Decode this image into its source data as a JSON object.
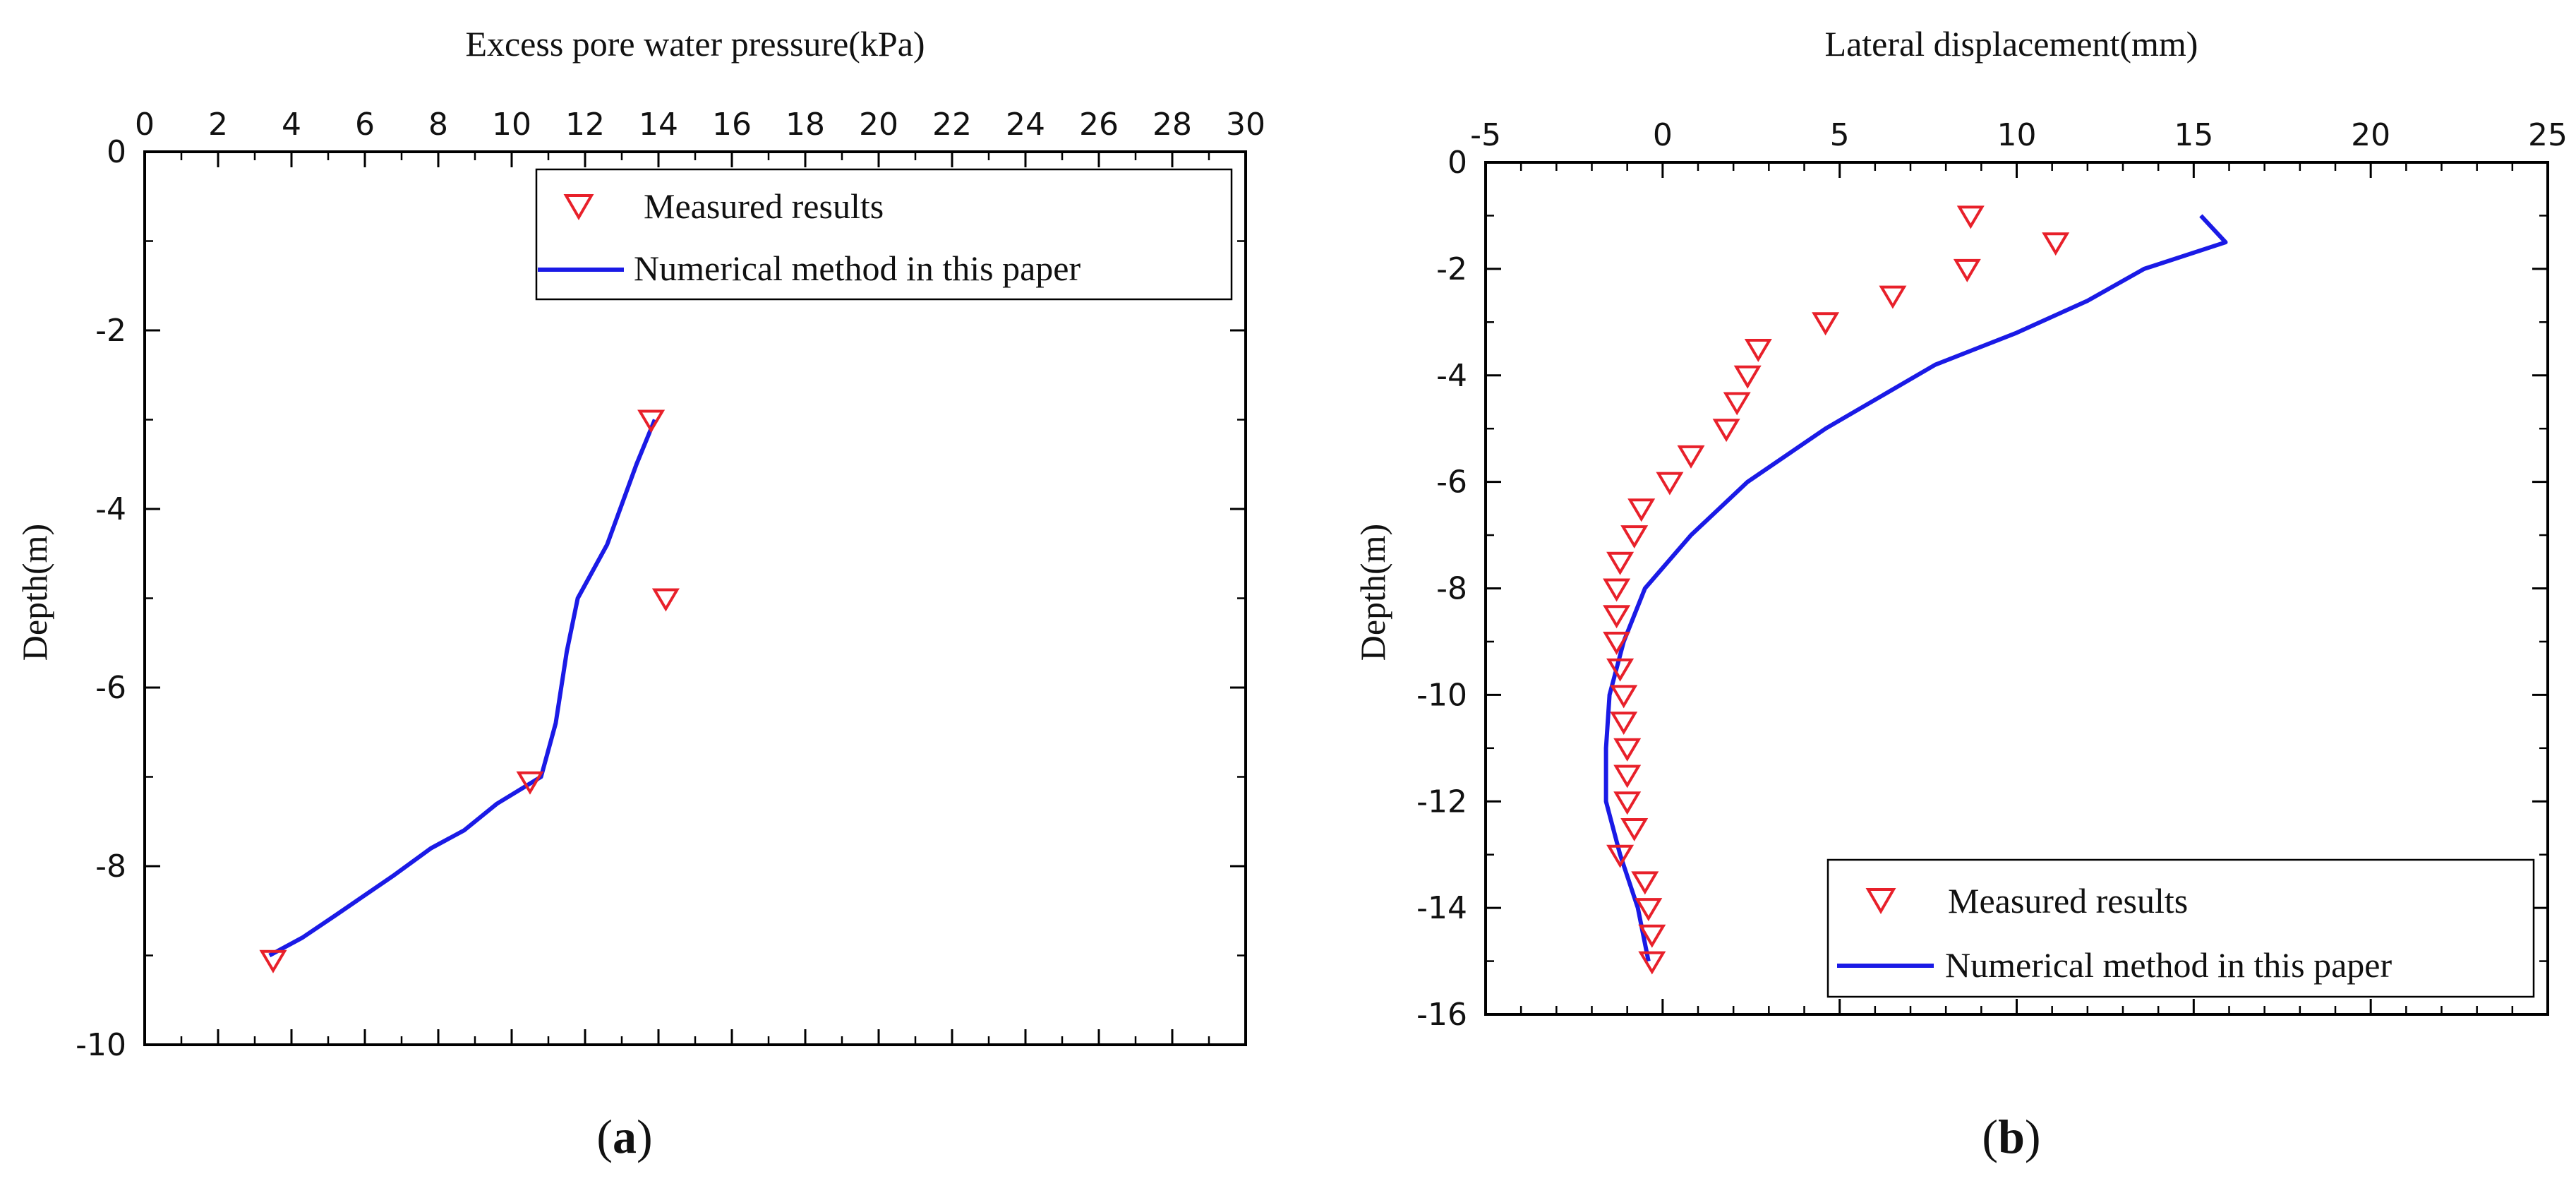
{
  "chart_data": [
    {
      "type": "scatter+line",
      "panel_label": "(a)",
      "panel_letter": "a",
      "xlabel": "Excess pore water pressure(kPa)",
      "ylabel": "Depth(m)",
      "xlim": [
        0,
        30
      ],
      "ylim": [
        -10,
        0
      ],
      "x_ticks": [
        0,
        2,
        4,
        6,
        8,
        10,
        12,
        14,
        16,
        18,
        20,
        22,
        24,
        26,
        28,
        30
      ],
      "x_tick_labels": [
        "0",
        "2",
        "4",
        "6",
        "8",
        "10",
        "12",
        "14",
        "16",
        "18",
        "20",
        "22",
        "24",
        "26",
        "28",
        "30"
      ],
      "y_ticks": [
        0,
        -2,
        -4,
        -6,
        -8,
        -10
      ],
      "y_tick_labels": [
        "0",
        "-2",
        "-4",
        "-6",
        "-8",
        "-10"
      ],
      "legend_position": "top-right",
      "series": [
        {
          "name": "Measured results",
          "kind": "scatter",
          "marker": "triangle-down",
          "color": "#e8202a",
          "points": [
            [
              13.8,
              -3.0
            ],
            [
              14.2,
              -5.0
            ],
            [
              10.5,
              -7.05
            ],
            [
              3.5,
              -9.05
            ]
          ]
        },
        {
          "name": "Numerical method in this paper",
          "kind": "line",
          "color": "#1a1ae6",
          "points": [
            [
              13.9,
              -3.0
            ],
            [
              13.4,
              -3.5
            ],
            [
              12.6,
              -4.4
            ],
            [
              11.8,
              -5.0
            ],
            [
              11.5,
              -5.6
            ],
            [
              11.2,
              -6.4
            ],
            [
              10.8,
              -7.0
            ],
            [
              9.6,
              -7.3
            ],
            [
              8.7,
              -7.6
            ],
            [
              7.8,
              -7.8
            ],
            [
              6.8,
              -8.1
            ],
            [
              5.2,
              -8.55
            ],
            [
              4.3,
              -8.8
            ],
            [
              3.4,
              -9.0
            ]
          ]
        }
      ]
    },
    {
      "type": "scatter+line",
      "panel_label": "(b)",
      "panel_letter": "b",
      "xlabel": "Lateral displacement(mm)",
      "ylabel": "Depth(m)",
      "xlim": [
        -5,
        25
      ],
      "ylim": [
        -16,
        0
      ],
      "x_ticks": [
        -5,
        0,
        5,
        10,
        15,
        20,
        25
      ],
      "x_tick_labels": [
        "-5",
        "0",
        "5",
        "10",
        "15",
        "20",
        "25"
      ],
      "y_ticks": [
        0,
        -2,
        -4,
        -6,
        -8,
        -10,
        -12,
        -14,
        -16
      ],
      "y_tick_labels": [
        "0",
        "-2",
        "-4",
        "-6",
        "-8",
        "-10",
        "-12",
        "-14",
        "-16"
      ],
      "legend_position": "bottom-right",
      "series": [
        {
          "name": "Measured results",
          "kind": "scatter",
          "marker": "triangle-down",
          "color": "#e8202a",
          "points": [
            [
              8.7,
              -1.0
            ],
            [
              11.1,
              -1.5
            ],
            [
              8.6,
              -2.0
            ],
            [
              6.5,
              -2.5
            ],
            [
              4.6,
              -3.0
            ],
            [
              2.7,
              -3.5
            ],
            [
              2.4,
              -4.0
            ],
            [
              2.1,
              -4.5
            ],
            [
              1.8,
              -5.0
            ],
            [
              0.8,
              -5.5
            ],
            [
              0.2,
              -6.0
            ],
            [
              -0.6,
              -6.5
            ],
            [
              -0.8,
              -7.0
            ],
            [
              -1.2,
              -7.5
            ],
            [
              -1.3,
              -8.0
            ],
            [
              -1.3,
              -8.5
            ],
            [
              -1.3,
              -9.0
            ],
            [
              -1.2,
              -9.5
            ],
            [
              -1.1,
              -10.0
            ],
            [
              -1.1,
              -10.5
            ],
            [
              -1.0,
              -11.0
            ],
            [
              -1.0,
              -11.5
            ],
            [
              -1.0,
              -12.0
            ],
            [
              -0.8,
              -12.5
            ],
            [
              -1.2,
              -13.0
            ],
            [
              -0.5,
              -13.5
            ],
            [
              -0.4,
              -14.0
            ],
            [
              -0.3,
              -14.5
            ],
            [
              -0.3,
              -15.0
            ]
          ]
        },
        {
          "name": "Numerical method in this paper",
          "kind": "line",
          "color": "#1a1ae6",
          "points": [
            [
              15.2,
              -1.0
            ],
            [
              15.9,
              -1.5
            ],
            [
              13.6,
              -2.0
            ],
            [
              12.0,
              -2.6
            ],
            [
              10.0,
              -3.2
            ],
            [
              7.7,
              -3.8
            ],
            [
              4.6,
              -5.0
            ],
            [
              2.4,
              -6.0
            ],
            [
              0.8,
              -7.0
            ],
            [
              -0.5,
              -8.0
            ],
            [
              -1.1,
              -9.0
            ],
            [
              -1.5,
              -10.0
            ],
            [
              -1.6,
              -11.0
            ],
            [
              -1.6,
              -12.0
            ],
            [
              -1.2,
              -13.0
            ],
            [
              -0.7,
              -14.0
            ],
            [
              -0.4,
              -15.0
            ]
          ]
        }
      ]
    }
  ]
}
